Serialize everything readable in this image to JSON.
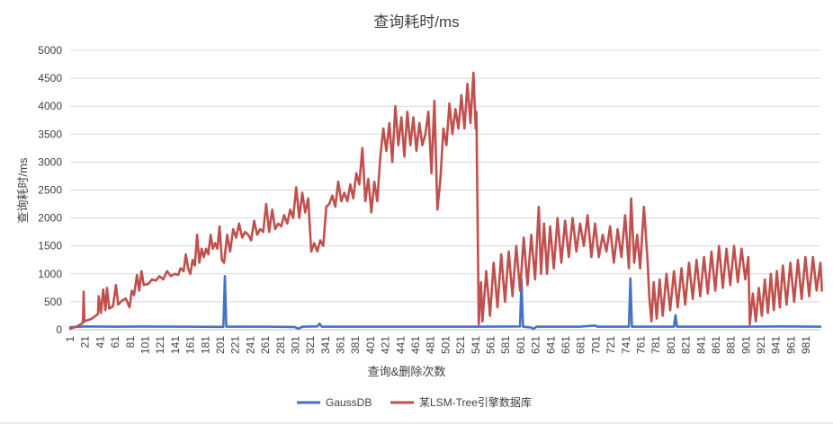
{
  "chart_data": {
    "type": "line",
    "title": "查询耗时/ms",
    "xlabel": "查询&删除次数",
    "ylabel": "查询耗时/ms",
    "ylim": [
      0,
      5000
    ],
    "yticks": [
      "0",
      "500",
      "1000",
      "1500",
      "2000",
      "2500",
      "3000",
      "3500",
      "4000",
      "4500",
      "5000"
    ],
    "xticks": [
      "1",
      "21",
      "41",
      "61",
      "81",
      "101",
      "121",
      "141",
      "161",
      "181",
      "201",
      "221",
      "241",
      "261",
      "281",
      "301",
      "321",
      "341",
      "361",
      "381",
      "401",
      "421",
      "441",
      "461",
      "481",
      "501",
      "521",
      "541",
      "561",
      "581",
      "601",
      "621",
      "641",
      "661",
      "681",
      "701",
      "721",
      "741",
      "761",
      "781",
      "801",
      "821",
      "841",
      "861",
      "881",
      "901",
      "921",
      "941",
      "961",
      "981"
    ],
    "grid": true,
    "legend_position": "bottom",
    "colors": {
      "GaussDB": "#4472c4",
      "某LSM-Tree引擎数据库": "#c0504d"
    },
    "series": [
      {
        "name": "GaussDB",
        "color": "#4472c4",
        "points": [
          [
            1,
            45
          ],
          [
            20,
            60
          ],
          [
            60,
            55
          ],
          [
            100,
            58
          ],
          [
            150,
            55
          ],
          [
            205,
            52
          ],
          [
            207,
            960
          ],
          [
            209,
            55
          ],
          [
            260,
            55
          ],
          [
            300,
            50
          ],
          [
            305,
            20
          ],
          [
            310,
            55
          ],
          [
            330,
            60
          ],
          [
            333,
            110
          ],
          [
            336,
            55
          ],
          [
            400,
            55
          ],
          [
            450,
            55
          ],
          [
            500,
            55
          ],
          [
            550,
            55
          ],
          [
            600,
            60
          ],
          [
            602,
            900
          ],
          [
            604,
            55
          ],
          [
            615,
            40
          ],
          [
            618,
            15
          ],
          [
            622,
            55
          ],
          [
            680,
            55
          ],
          [
            700,
            75
          ],
          [
            703,
            55
          ],
          [
            745,
            55
          ],
          [
            747,
            920
          ],
          [
            749,
            55
          ],
          [
            805,
            55
          ],
          [
            807,
            260
          ],
          [
            809,
            55
          ],
          [
            850,
            55
          ],
          [
            900,
            55
          ],
          [
            950,
            60
          ],
          [
            1000,
            55
          ]
        ]
      },
      {
        "name": "某LSM-Tree引擎数据库",
        "color": "#c0504d",
        "points": [
          [
            1,
            20
          ],
          [
            10,
            60
          ],
          [
            18,
            120
          ],
          [
            19,
            680
          ],
          [
            20,
            150
          ],
          [
            30,
            200
          ],
          [
            38,
            280
          ],
          [
            39,
            600
          ],
          [
            42,
            300
          ],
          [
            45,
            720
          ],
          [
            48,
            350
          ],
          [
            50,
            750
          ],
          [
            53,
            380
          ],
          [
            58,
            420
          ],
          [
            62,
            800
          ],
          [
            65,
            450
          ],
          [
            70,
            520
          ],
          [
            75,
            560
          ],
          [
            80,
            400
          ],
          [
            83,
            700
          ],
          [
            86,
            620
          ],
          [
            90,
            980
          ],
          [
            93,
            700
          ],
          [
            96,
            1050
          ],
          [
            99,
            800
          ],
          [
            105,
            820
          ],
          [
            110,
            900
          ],
          [
            115,
            880
          ],
          [
            120,
            960
          ],
          [
            125,
            900
          ],
          [
            130,
            1050
          ],
          [
            135,
            960
          ],
          [
            140,
            1000
          ],
          [
            145,
            980
          ],
          [
            148,
            1100
          ],
          [
            152,
            1050
          ],
          [
            155,
            1350
          ],
          [
            158,
            1100
          ],
          [
            161,
            1000
          ],
          [
            164,
            1250
          ],
          [
            167,
            1150
          ],
          [
            170,
            1700
          ],
          [
            173,
            1200
          ],
          [
            176,
            1450
          ],
          [
            179,
            1300
          ],
          [
            182,
            1450
          ],
          [
            185,
            1350
          ],
          [
            188,
            1700
          ],
          [
            191,
            1450
          ],
          [
            194,
            1550
          ],
          [
            197,
            1450
          ],
          [
            200,
            1850
          ],
          [
            203,
            1250
          ],
          [
            206,
            1200
          ],
          [
            210,
            1700
          ],
          [
            214,
            1400
          ],
          [
            218,
            1800
          ],
          [
            222,
            1650
          ],
          [
            226,
            1900
          ],
          [
            230,
            1650
          ],
          [
            234,
            1750
          ],
          [
            238,
            1700
          ],
          [
            242,
            1600
          ],
          [
            246,
            1950
          ],
          [
            250,
            1700
          ],
          [
            254,
            1800
          ],
          [
            258,
            1750
          ],
          [
            262,
            2250
          ],
          [
            266,
            1750
          ],
          [
            270,
            2150
          ],
          [
            274,
            1800
          ],
          [
            278,
            1900
          ],
          [
            282,
            1850
          ],
          [
            286,
            2050
          ],
          [
            290,
            1900
          ],
          [
            294,
            2150
          ],
          [
            298,
            2000
          ],
          [
            302,
            2550
          ],
          [
            306,
            2000
          ],
          [
            310,
            2450
          ],
          [
            314,
            2100
          ],
          [
            318,
            2350
          ],
          [
            322,
            1400
          ],
          [
            326,
            1550
          ],
          [
            330,
            1400
          ],
          [
            334,
            1600
          ],
          [
            338,
            1500
          ],
          [
            342,
            2200
          ],
          [
            346,
            2250
          ],
          [
            350,
            2400
          ],
          [
            354,
            2200
          ],
          [
            358,
            2650
          ],
          [
            362,
            2300
          ],
          [
            366,
            2450
          ],
          [
            370,
            2300
          ],
          [
            374,
            2600
          ],
          [
            378,
            2350
          ],
          [
            382,
            2800
          ],
          [
            386,
            2600
          ],
          [
            390,
            3250
          ],
          [
            394,
            2300
          ],
          [
            398,
            2700
          ],
          [
            402,
            2100
          ],
          [
            406,
            2650
          ],
          [
            410,
            2300
          ],
          [
            414,
            3100
          ],
          [
            418,
            3600
          ],
          [
            422,
            3200
          ],
          [
            426,
            3700
          ],
          [
            430,
            3000
          ],
          [
            434,
            4000
          ],
          [
            438,
            3300
          ],
          [
            442,
            3800
          ],
          [
            446,
            3100
          ],
          [
            450,
            3900
          ],
          [
            454,
            3300
          ],
          [
            458,
            3800
          ],
          [
            462,
            3200
          ],
          [
            466,
            3700
          ],
          [
            470,
            3300
          ],
          [
            474,
            3500
          ],
          [
            478,
            3900
          ],
          [
            482,
            2800
          ],
          [
            486,
            4100
          ],
          [
            490,
            2150
          ],
          [
            494,
            2700
          ],
          [
            498,
            3600
          ],
          [
            502,
            3300
          ],
          [
            506,
            4050
          ],
          [
            510,
            3500
          ],
          [
            514,
            3950
          ],
          [
            518,
            3600
          ],
          [
            522,
            4200
          ],
          [
            526,
            3600
          ],
          [
            530,
            4400
          ],
          [
            534,
            3700
          ],
          [
            538,
            4600
          ],
          [
            541,
            3600
          ],
          [
            542,
            3900
          ],
          [
            545,
            100
          ],
          [
            548,
            850
          ],
          [
            550,
            150
          ],
          [
            555,
            1050
          ],
          [
            560,
            250
          ],
          [
            565,
            1200
          ],
          [
            570,
            400
          ],
          [
            575,
            1350
          ],
          [
            580,
            500
          ],
          [
            585,
            1400
          ],
          [
            590,
            600
          ],
          [
            595,
            1500
          ],
          [
            600,
            700
          ],
          [
            605,
            1650
          ],
          [
            610,
            800
          ],
          [
            615,
            1700
          ],
          [
            620,
            900
          ],
          [
            625,
            2200
          ],
          [
            628,
            1000
          ],
          [
            632,
            1900
          ],
          [
            636,
            1000
          ],
          [
            640,
            1850
          ],
          [
            645,
            1100
          ],
          [
            650,
            2000
          ],
          [
            655,
            1200
          ],
          [
            660,
            1950
          ],
          [
            665,
            1300
          ],
          [
            670,
            2000
          ],
          [
            675,
            1400
          ],
          [
            680,
            1900
          ],
          [
            685,
            1500
          ],
          [
            690,
            2050
          ],
          [
            695,
            1300
          ],
          [
            700,
            1900
          ],
          [
            705,
            1300
          ],
          [
            710,
            1700
          ],
          [
            715,
            1400
          ],
          [
            720,
            1850
          ],
          [
            725,
            1200
          ],
          [
            730,
            1800
          ],
          [
            735,
            1300
          ],
          [
            740,
            2050
          ],
          [
            745,
            1100
          ],
          [
            748,
            2350
          ],
          [
            752,
            1200
          ],
          [
            756,
            1700
          ],
          [
            760,
            1100
          ],
          [
            765,
            2200
          ],
          [
            770,
            1200
          ],
          [
            772,
            600
          ],
          [
            775,
            150
          ],
          [
            778,
            850
          ],
          [
            782,
            200
          ],
          [
            786,
            900
          ],
          [
            790,
            250
          ],
          [
            795,
            1000
          ],
          [
            800,
            350
          ],
          [
            805,
            1050
          ],
          [
            810,
            400
          ],
          [
            815,
            1100
          ],
          [
            820,
            450
          ],
          [
            825,
            1200
          ],
          [
            830,
            550
          ],
          [
            835,
            1250
          ],
          [
            840,
            600
          ],
          [
            845,
            1300
          ],
          [
            850,
            650
          ],
          [
            855,
            1400
          ],
          [
            860,
            700
          ],
          [
            865,
            1500
          ],
          [
            870,
            750
          ],
          [
            875,
            1450
          ],
          [
            880,
            800
          ],
          [
            885,
            1500
          ],
          [
            890,
            850
          ],
          [
            895,
            1450
          ],
          [
            900,
            900
          ],
          [
            904,
            1300
          ],
          [
            906,
            100
          ],
          [
            910,
            650
          ],
          [
            914,
            150
          ],
          [
            918,
            750
          ],
          [
            922,
            250
          ],
          [
            926,
            900
          ],
          [
            930,
            300
          ],
          [
            934,
            1000
          ],
          [
            938,
            350
          ],
          [
            942,
            1050
          ],
          [
            946,
            400
          ],
          [
            950,
            1150
          ],
          [
            955,
            450
          ],
          [
            960,
            1200
          ],
          [
            965,
            500
          ],
          [
            970,
            1250
          ],
          [
            975,
            550
          ],
          [
            980,
            1300
          ],
          [
            985,
            600
          ],
          [
            990,
            1300
          ],
          [
            995,
            700
          ],
          [
            1000,
            1200
          ],
          [
            1002,
            700
          ]
        ]
      }
    ]
  }
}
